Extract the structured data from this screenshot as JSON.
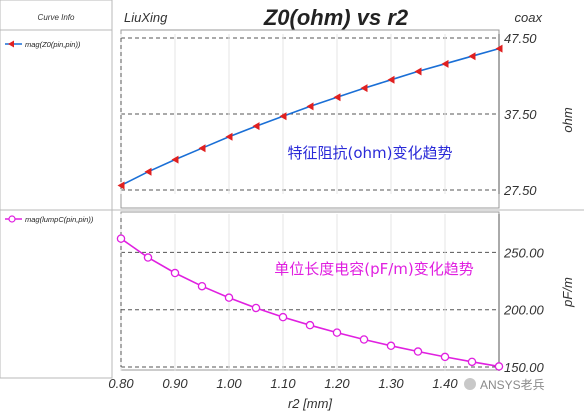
{
  "header": {
    "curve_info_label": "Curve Info",
    "project_name": "LiuXing",
    "title": "Z0(ohm) vs r2",
    "design_name": "coax"
  },
  "chart_data": [
    {
      "type": "line",
      "legend_entry": "mag(Z0(pin,pin))",
      "color": "#1a6fd6",
      "marker_color": "#e02020",
      "annotation": "特征阻抗(ohm)变化趋势",
      "annotation_color": "#2a2ad8",
      "ylabel": "ohm",
      "yticks": [
        "47.50",
        "37.50",
        "27.50"
      ],
      "ylim": [
        27.5,
        47.5
      ],
      "x": [
        0.8,
        0.85,
        0.9,
        0.95,
        1.0,
        1.05,
        1.1,
        1.15,
        1.2,
        1.25,
        1.3,
        1.35,
        1.4,
        1.45,
        1.5
      ],
      "values": [
        28.1,
        29.9,
        31.5,
        33.0,
        34.5,
        35.9,
        37.2,
        38.5,
        39.7,
        40.9,
        42.0,
        43.1,
        44.1,
        45.1,
        46.1
      ],
      "grid": true
    },
    {
      "type": "line",
      "legend_entry": "mag(lumpC(pin,pin))",
      "color": "#e020e0",
      "marker_color": "#e020e0",
      "annotation": "单位长度电容(pF/m)变化趋势",
      "annotation_color": "#e020e0",
      "ylabel": "pF/m",
      "yticks": [
        "250.00",
        "200.00",
        "150.00"
      ],
      "ylim": [
        150,
        280
      ],
      "x": [
        0.8,
        0.85,
        0.9,
        0.95,
        1.0,
        1.05,
        1.1,
        1.15,
        1.2,
        1.25,
        1.3,
        1.35,
        1.4,
        1.45,
        1.5
      ],
      "values": [
        262.0,
        245.5,
        232.0,
        220.5,
        210.5,
        201.5,
        193.5,
        186.5,
        180.0,
        174.0,
        168.5,
        163.5,
        158.8,
        154.5,
        150.5
      ],
      "grid": true
    }
  ],
  "x_axis": {
    "label": "r2 [mm]",
    "ticks": [
      "0.80",
      "0.90",
      "1.00",
      "1.10",
      "1.20",
      "1.30",
      "1.40"
    ],
    "tick_values": [
      0.8,
      0.9,
      1.0,
      1.1,
      1.2,
      1.3,
      1.4
    ],
    "xlim": [
      0.8,
      1.5
    ]
  },
  "watermark": "ANSYS老兵"
}
